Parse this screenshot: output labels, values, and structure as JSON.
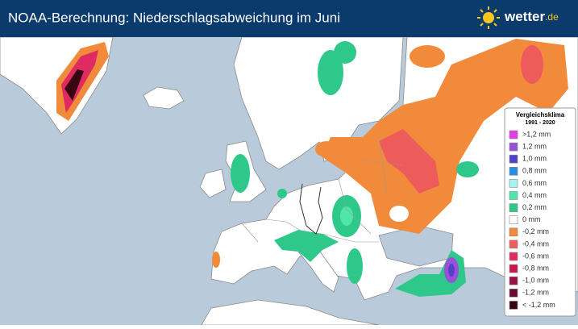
{
  "header": {
    "title": "NOAA-Berechnung: Niederschlagsabweichung im Juni",
    "logo": {
      "name": "wetter",
      "tld": ".de"
    }
  },
  "legend": {
    "title": "Vergleichsklima",
    "period": "1991 - 2020",
    "items": [
      {
        "label": ">1,2 mm",
        "color": "#e03fe3"
      },
      {
        "label": "1,2 mm",
        "color": "#9850d8"
      },
      {
        "label": "1,0 mm",
        "color": "#5540c8"
      },
      {
        "label": "0,8 mm",
        "color": "#2a8ee2"
      },
      {
        "label": "0,6 mm",
        "color": "#a6f2f0"
      },
      {
        "label": "0,4 mm",
        "color": "#4fe6a8"
      },
      {
        "label": "0,2 mm",
        "color": "#2ec98a"
      },
      {
        "label": "0 mm",
        "color": "#ffffff"
      },
      {
        "label": "-0,2 mm",
        "color": "#f28a3c"
      },
      {
        "label": "-0,4 mm",
        "color": "#ee5b5b"
      },
      {
        "label": "-0,6 mm",
        "color": "#e02a62"
      },
      {
        "label": "-0,8 mm",
        "color": "#c41a4c"
      },
      {
        "label": "-1,0 mm",
        "color": "#9a1042"
      },
      {
        "label": "-1,2 mm",
        "color": "#6a0a32"
      },
      {
        "label": "< -1,2 mm",
        "color": "#3a0512"
      }
    ]
  }
}
